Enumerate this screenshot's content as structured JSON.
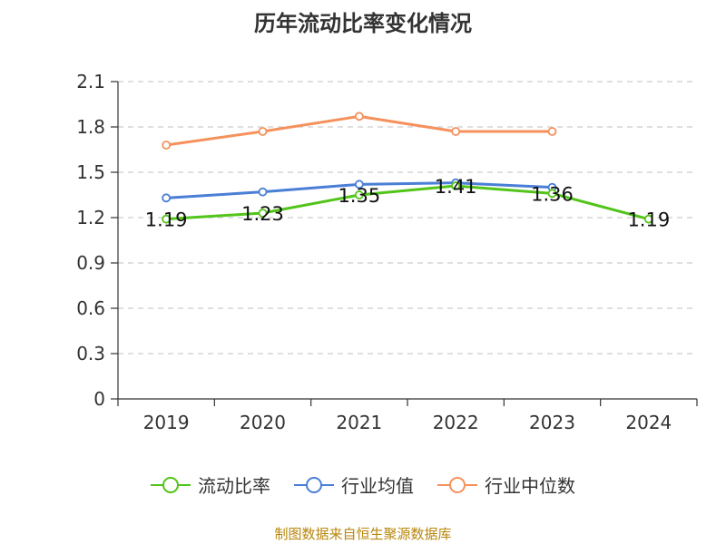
{
  "chart_data": {
    "type": "line",
    "title": "历年流动比率变化情况",
    "categories": [
      "2019",
      "2020",
      "2021",
      "2022",
      "2023",
      "2024"
    ],
    "ylim": [
      0,
      2.1
    ],
    "yticks": [
      "0",
      "0.3",
      "0.6",
      "0.9",
      "1.2",
      "1.5",
      "1.8",
      "2.1"
    ],
    "grid": true,
    "legend_position": "bottom",
    "series": [
      {
        "name": "流动比率",
        "color": "#52c41a",
        "values": [
          1.19,
          1.23,
          1.35,
          1.41,
          1.36,
          1.19
        ],
        "labels": [
          "1.19",
          "1.23",
          "1.35",
          "1.41",
          "1.36",
          "1.19"
        ]
      },
      {
        "name": "行业均值",
        "color": "#4a7fd6",
        "values": [
          1.33,
          1.37,
          1.42,
          1.43,
          1.4,
          null
        ]
      },
      {
        "name": "行业中位数",
        "color": "#f5915c",
        "values": [
          1.68,
          1.77,
          1.87,
          1.77,
          1.77,
          null
        ]
      }
    ]
  },
  "source": "制图数据来自恒生聚源数据库"
}
